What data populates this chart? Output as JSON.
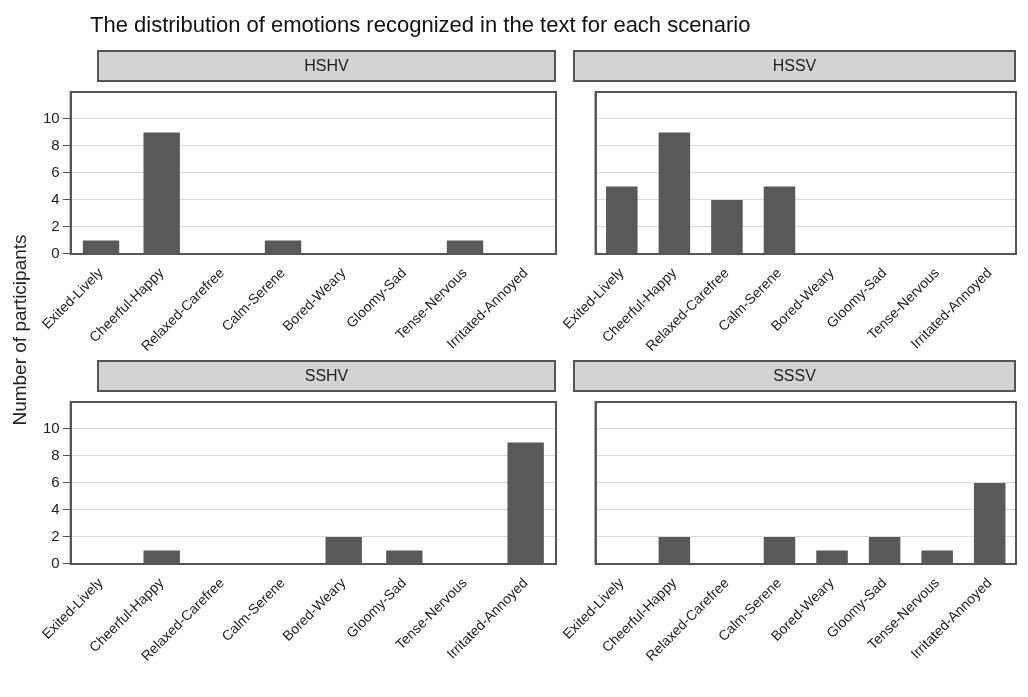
{
  "chart_data": [
    {
      "type": "bar",
      "title": "HSHV",
      "annotations": [
        "The distribution of emotions recognized in the text for each scenario"
      ],
      "ylabel": "Number of participants",
      "categories": [
        "Exited-Lively",
        "Cheerful-Happy",
        "Relaxed-Carefree",
        "Calm-Serene",
        "Bored-Weary",
        "Gloomy-Sad",
        "Tense-Nervous",
        "Irritated-Annoyed"
      ],
      "values": [
        1,
        9,
        0,
        1,
        0,
        0,
        1,
        0
      ],
      "color": "#595959",
      "ylim": [
        0,
        12
      ],
      "yticks": [
        0,
        2,
        4,
        6,
        8,
        10
      ],
      "grid": "y"
    },
    {
      "type": "bar",
      "title": "HSSV",
      "categories": [
        "Exited-Lively",
        "Cheerful-Happy",
        "Relaxed-Carefree",
        "Calm-Serene",
        "Bored-Weary",
        "Gloomy-Sad",
        "Tense-Nervous",
        "Irritated-Annoyed"
      ],
      "values": [
        5,
        9,
        4,
        5,
        0,
        0,
        0,
        0
      ],
      "color": "#595959",
      "ylim": [
        0,
        12
      ],
      "yticks": [
        0,
        2,
        4,
        6,
        8,
        10
      ],
      "grid": "y",
      "tick_labels": "x"
    },
    {
      "type": "bar",
      "title": "SSHV",
      "categories": [
        "Exited-Lively",
        "Cheerful-Happy",
        "Relaxed-Carefree",
        "Calm-Serene",
        "Bored-Weary",
        "Gloomy-Sad",
        "Tense-Nervous",
        "Irritated-Annoyed"
      ],
      "values": [
        0,
        1,
        0,
        0,
        2,
        1,
        0,
        9
      ],
      "color": "#595959",
      "ylim": [
        0,
        12
      ],
      "yticks": [
        0,
        2,
        4,
        6,
        8,
        10
      ],
      "grid": "y"
    },
    {
      "type": "bar",
      "title": "SSSV",
      "categories": [
        "Exited-Lively",
        "Cheerful-Happy",
        "Relaxed-Carefree",
        "Calm-Serene",
        "Bored-Weary",
        "Gloomy-Sad",
        "Tense-Nervous",
        "Irritated-Annoyed"
      ],
      "values": [
        0,
        2,
        0,
        2,
        1,
        2,
        1,
        6
      ],
      "color": "#595959",
      "ylim": [
        0,
        12
      ],
      "yticks": [
        0,
        2,
        4,
        6,
        8,
        10
      ],
      "grid": "y",
      "tick_labels": "x"
    }
  ]
}
